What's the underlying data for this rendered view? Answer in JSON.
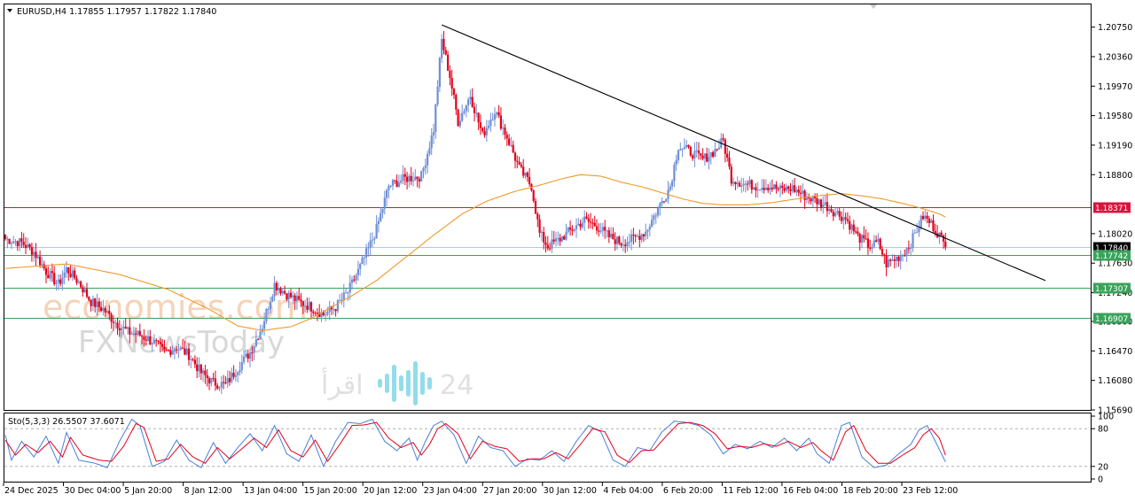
{
  "colors": {
    "bull": "#6f8fd6",
    "bear": "#e3001b",
    "ma": "#ef9a2a",
    "trendline": "#000000",
    "stoch_main": "#4a7fd8",
    "stoch_signal": "#e3001b",
    "resistance": "#d9143c",
    "support": "#3aa35a",
    "current": "#9fd3d9"
  },
  "chart_data": [
    {
      "type": "candlestick",
      "title": "EURUSD,H4  1.17855 1.17957 1.17822 1.17840",
      "symbol": "EURUSD",
      "timeframe": "H4",
      "ohlc_last": {
        "open": "1.17855",
        "high": "1.17957",
        "low": "1.17822",
        "close": "1.17840"
      },
      "ylim": [
        1.1569,
        1.2105
      ],
      "y_ticks": [
        "1.20750",
        "1.20360",
        "1.19970",
        "1.19580",
        "1.19190",
        "1.18800",
        "1.18020",
        "1.17630",
        "1.17240",
        "1.16860",
        "1.16470",
        "1.16080",
        "1.15690"
      ],
      "x_ticks": [
        "24 Dec 2025",
        "30 Dec 04:00",
        "5 Jan 20:00",
        "8 Jan 12:00",
        "13 Jan 04:00",
        "15 Jan 20:00",
        "20 Jan 12:00",
        "23 Jan 04:00",
        "27 Jan 20:00",
        "30 Jan 12:00",
        "4 Feb 04:00",
        "6 Feb 20:00",
        "11 Feb 12:00",
        "16 Feb 04:00",
        "18 Feb 20:00",
        "23 Feb 12:00"
      ],
      "anchor_closes": [
        [
          0,
          1.1795
        ],
        [
          8,
          1.179
        ],
        [
          14,
          1.1778
        ],
        [
          20,
          1.1752
        ],
        [
          26,
          1.1735
        ],
        [
          30,
          1.1755
        ],
        [
          36,
          1.1738
        ],
        [
          42,
          1.1712
        ],
        [
          48,
          1.1702
        ],
        [
          54,
          1.1685
        ],
        [
          60,
          1.1672
        ],
        [
          66,
          1.1668
        ],
        [
          72,
          1.166
        ],
        [
          78,
          1.1645
        ],
        [
          84,
          1.1652
        ],
        [
          90,
          1.1642
        ],
        [
          96,
          1.1618
        ],
        [
          102,
          1.1605
        ],
        [
          108,
          1.1602
        ],
        [
          114,
          1.1625
        ],
        [
          120,
          1.1645
        ],
        [
          126,
          1.168
        ],
        [
          132,
          1.1735
        ],
        [
          138,
          1.1722
        ],
        [
          144,
          1.1712
        ],
        [
          150,
          1.1705
        ],
        [
          156,
          1.1695
        ],
        [
          162,
          1.1705
        ],
        [
          168,
          1.1725
        ],
        [
          174,
          1.1758
        ],
        [
          178,
          1.1782
        ],
        [
          182,
          1.1808
        ],
        [
          188,
          1.1865
        ],
        [
          196,
          1.1875
        ],
        [
          204,
          1.1878
        ],
        [
          210,
          1.194
        ],
        [
          214,
          1.2058
        ],
        [
          218,
          1.201
        ],
        [
          222,
          1.195
        ],
        [
          228,
          1.1985
        ],
        [
          234,
          1.1932
        ],
        [
          240,
          1.1965
        ],
        [
          246,
          1.193
        ],
        [
          252,
          1.1888
        ],
        [
          258,
          1.1865
        ],
        [
          262,
          1.1802
        ],
        [
          266,
          1.1785
        ],
        [
          272,
          1.1795
        ],
        [
          278,
          1.1808
        ],
        [
          284,
          1.182
        ],
        [
          290,
          1.1812
        ],
        [
          296,
          1.1798
        ],
        [
          302,
          1.179
        ],
        [
          308,
          1.1795
        ],
        [
          314,
          1.1805
        ],
        [
          320,
          1.1835
        ],
        [
          326,
          1.1865
        ],
        [
          330,
          1.1918
        ],
        [
          336,
          1.191
        ],
        [
          342,
          1.19
        ],
        [
          348,
          1.1912
        ],
        [
          352,
          1.1925
        ],
        [
          356,
          1.1875
        ],
        [
          362,
          1.1868
        ],
        [
          368,
          1.1865
        ],
        [
          374,
          1.1865
        ],
        [
          380,
          1.186
        ],
        [
          386,
          1.1862
        ],
        [
          392,
          1.1852
        ],
        [
          398,
          1.1845
        ],
        [
          402,
          1.184
        ],
        [
          406,
          1.1832
        ],
        [
          412,
          1.1822
        ],
        [
          418,
          1.1798
        ],
        [
          424,
          1.1785
        ],
        [
          428,
          1.179
        ],
        [
          432,
          1.1762
        ],
        [
          436,
          1.1768
        ],
        [
          440,
          1.1775
        ],
        [
          444,
          1.179
        ],
        [
          450,
          1.1825
        ],
        [
          454,
          1.1815
        ],
        [
          458,
          1.18
        ],
        [
          461,
          1.1784
        ]
      ],
      "sma_anchors": [
        [
          0,
          1.1756
        ],
        [
          30,
          1.1762
        ],
        [
          56,
          1.1748
        ],
        [
          80,
          1.1728
        ],
        [
          100,
          1.1702
        ],
        [
          114,
          1.168
        ],
        [
          126,
          1.1674
        ],
        [
          140,
          1.1679
        ],
        [
          150,
          1.169
        ],
        [
          160,
          1.1705
        ],
        [
          170,
          1.172
        ],
        [
          182,
          1.174
        ],
        [
          196,
          1.177
        ],
        [
          210,
          1.18
        ],
        [
          224,
          1.1828
        ],
        [
          236,
          1.1845
        ],
        [
          250,
          1.1858
        ],
        [
          262,
          1.1866
        ],
        [
          272,
          1.1874
        ],
        [
          282,
          1.188
        ],
        [
          292,
          1.1878
        ],
        [
          302,
          1.187
        ],
        [
          312,
          1.1864
        ],
        [
          322,
          1.1856
        ],
        [
          332,
          1.1848
        ],
        [
          342,
          1.1842
        ],
        [
          352,
          1.184
        ],
        [
          364,
          1.184
        ],
        [
          376,
          1.1843
        ],
        [
          388,
          1.1848
        ],
        [
          398,
          1.1852
        ],
        [
          410,
          1.1855
        ],
        [
          420,
          1.1852
        ],
        [
          430,
          1.1848
        ],
        [
          440,
          1.1842
        ],
        [
          450,
          1.1835
        ],
        [
          458,
          1.1828
        ],
        [
          461,
          1.1824
        ]
      ],
      "trendline": {
        "from": [
          214,
          1.2078
        ],
        "to": [
          510,
          1.174
        ]
      },
      "horizontal_levels": [
        {
          "price": 1.18371,
          "label": "1.18371",
          "kind": "resistance"
        },
        {
          "price": 1.1784,
          "label": "1.17840",
          "kind": "current"
        },
        {
          "price": 1.17742,
          "label": "1.17742",
          "kind": "support"
        },
        {
          "price": 1.17307,
          "label": "1.17307",
          "kind": "support"
        },
        {
          "price": 1.16907,
          "label": "1.16907",
          "kind": "support"
        }
      ]
    },
    {
      "type": "line",
      "title": "Sto(5,3,3) 26.5507 37.6071",
      "indicator": "Stochastic",
      "params": "5,3,3",
      "main_value": "26.5507",
      "signal_value": "37.6071",
      "ylim": [
        0,
        100
      ],
      "y_ticks": [
        "100",
        "80",
        "20",
        "0"
      ],
      "levels": [
        80,
        20
      ],
      "main_anchors": [
        [
          0,
          70
        ],
        [
          3,
          30
        ],
        [
          8,
          60
        ],
        [
          14,
          35
        ],
        [
          20,
          68
        ],
        [
          26,
          25
        ],
        [
          30,
          74
        ],
        [
          36,
          30
        ],
        [
          44,
          25
        ],
        [
          50,
          18
        ],
        [
          56,
          60
        ],
        [
          62,
          95
        ],
        [
          66,
          85
        ],
        [
          72,
          20
        ],
        [
          78,
          28
        ],
        [
          84,
          62
        ],
        [
          90,
          30
        ],
        [
          96,
          18
        ],
        [
          102,
          58
        ],
        [
          108,
          25
        ],
        [
          114,
          50
        ],
        [
          120,
          72
        ],
        [
          126,
          45
        ],
        [
          132,
          85
        ],
        [
          138,
          40
        ],
        [
          144,
          28
        ],
        [
          150,
          70
        ],
        [
          156,
          20
        ],
        [
          162,
          60
        ],
        [
          168,
          90
        ],
        [
          174,
          88
        ],
        [
          180,
          95
        ],
        [
          186,
          60
        ],
        [
          192,
          45
        ],
        [
          198,
          65
        ],
        [
          202,
          30
        ],
        [
          206,
          60
        ],
        [
          210,
          85
        ],
        [
          214,
          92
        ],
        [
          220,
          70
        ],
        [
          226,
          25
        ],
        [
          232,
          68
        ],
        [
          238,
          50
        ],
        [
          244,
          45
        ],
        [
          250,
          20
        ],
        [
          256,
          32
        ],
        [
          262,
          30
        ],
        [
          268,
          45
        ],
        [
          274,
          28
        ],
        [
          280,
          60
        ],
        [
          286,
          85
        ],
        [
          292,
          75
        ],
        [
          298,
          30
        ],
        [
          304,
          20
        ],
        [
          310,
          50
        ],
        [
          316,
          45
        ],
        [
          322,
          75
        ],
        [
          328,
          92
        ],
        [
          334,
          90
        ],
        [
          340,
          85
        ],
        [
          346,
          70
        ],
        [
          352,
          40
        ],
        [
          358,
          55
        ],
        [
          364,
          48
        ],
        [
          370,
          60
        ],
        [
          376,
          50
        ],
        [
          382,
          65
        ],
        [
          388,
          45
        ],
        [
          394,
          65
        ],
        [
          398,
          40
        ],
        [
          404,
          25
        ],
        [
          410,
          85
        ],
        [
          414,
          90
        ],
        [
          420,
          35
        ],
        [
          426,
          18
        ],
        [
          432,
          22
        ],
        [
          438,
          40
        ],
        [
          444,
          55
        ],
        [
          448,
          78
        ],
        [
          452,
          85
        ],
        [
          456,
          60
        ],
        [
          461,
          27
        ]
      ],
      "signal_anchors": [
        [
          0,
          62
        ],
        [
          5,
          38
        ],
        [
          10,
          55
        ],
        [
          16,
          42
        ],
        [
          22,
          60
        ],
        [
          28,
          35
        ],
        [
          32,
          66
        ],
        [
          38,
          38
        ],
        [
          46,
          30
        ],
        [
          52,
          28
        ],
        [
          58,
          52
        ],
        [
          64,
          88
        ],
        [
          68,
          82
        ],
        [
          74,
          28
        ],
        [
          80,
          32
        ],
        [
          86,
          55
        ],
        [
          92,
          35
        ],
        [
          98,
          25
        ],
        [
          104,
          50
        ],
        [
          110,
          32
        ],
        [
          116,
          48
        ],
        [
          122,
          65
        ],
        [
          128,
          50
        ],
        [
          134,
          78
        ],
        [
          140,
          45
        ],
        [
          146,
          35
        ],
        [
          152,
          62
        ],
        [
          158,
          28
        ],
        [
          164,
          55
        ],
        [
          170,
          85
        ],
        [
          176,
          86
        ],
        [
          182,
          90
        ],
        [
          188,
          65
        ],
        [
          194,
          50
        ],
        [
          200,
          58
        ],
        [
          204,
          38
        ],
        [
          208,
          55
        ],
        [
          212,
          80
        ],
        [
          216,
          88
        ],
        [
          222,
          72
        ],
        [
          228,
          32
        ],
        [
          234,
          60
        ],
        [
          240,
          52
        ],
        [
          246,
          48
        ],
        [
          252,
          28
        ],
        [
          258,
          32
        ],
        [
          264,
          32
        ],
        [
          270,
          42
        ],
        [
          276,
          32
        ],
        [
          282,
          55
        ],
        [
          288,
          80
        ],
        [
          294,
          75
        ],
        [
          300,
          38
        ],
        [
          306,
          26
        ],
        [
          312,
          45
        ],
        [
          318,
          46
        ],
        [
          324,
          68
        ],
        [
          330,
          88
        ],
        [
          336,
          90
        ],
        [
          342,
          85
        ],
        [
          348,
          72
        ],
        [
          354,
          48
        ],
        [
          360,
          52
        ],
        [
          366,
          50
        ],
        [
          372,
          56
        ],
        [
          378,
          52
        ],
        [
          384,
          60
        ],
        [
          390,
          50
        ],
        [
          396,
          58
        ],
        [
          400,
          45
        ],
        [
          406,
          30
        ],
        [
          412,
          75
        ],
        [
          416,
          85
        ],
        [
          422,
          45
        ],
        [
          428,
          25
        ],
        [
          434,
          25
        ],
        [
          440,
          38
        ],
        [
          446,
          50
        ],
        [
          450,
          70
        ],
        [
          454,
          80
        ],
        [
          458,
          65
        ],
        [
          461,
          38
        ]
      ]
    }
  ],
  "watermarks": {
    "line1": "economies.com",
    "line2": "FXNewsToday",
    "line3_arabic": "اقرأ",
    "line3_number": "24"
  }
}
